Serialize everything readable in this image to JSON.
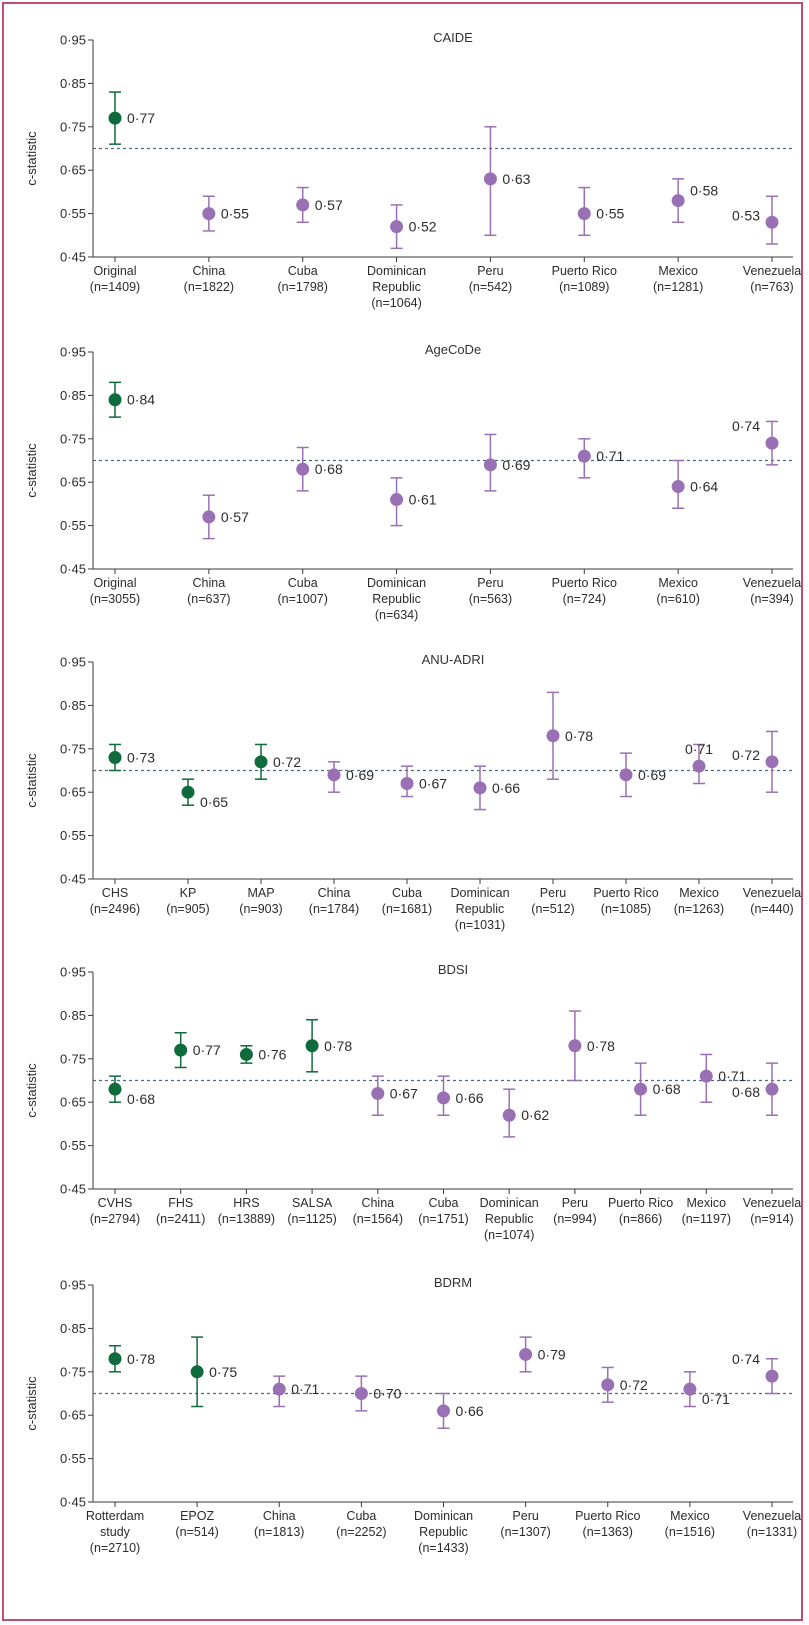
{
  "colors": {
    "original": "#0f6b3b",
    "external": "#9a70b4",
    "reference_line": "#4a6a80",
    "frame": "#c24b78",
    "axis": "#3a3a3a"
  },
  "chart_data": [
    {
      "type": "scatter",
      "title": "CAIDE",
      "ylabel": "c-statistic",
      "ylim": [
        0.45,
        0.95
      ],
      "yticks": [
        "0·95",
        "0·85",
        "0·75",
        "0·65",
        "0·55",
        "0·45"
      ],
      "reference_line": 0.7,
      "points": [
        {
          "category": "Original",
          "sublabels": [
            "(n=1409)"
          ],
          "value": 0.77,
          "label": "0·77",
          "lower": 0.71,
          "upper": 0.83,
          "group": "original"
        },
        {
          "category": "China",
          "sublabels": [
            "(n=1822)"
          ],
          "value": 0.55,
          "label": "0·55",
          "lower": 0.51,
          "upper": 0.59,
          "group": "external"
        },
        {
          "category": "Cuba",
          "sublabels": [
            "(n=1798)"
          ],
          "value": 0.57,
          "label": "0·57",
          "lower": 0.53,
          "upper": 0.61,
          "group": "external"
        },
        {
          "category": "Dominican",
          "sublabels": [
            "Republic",
            "(n=1064)"
          ],
          "value": 0.52,
          "label": "0·52",
          "lower": 0.47,
          "upper": 0.57,
          "group": "external"
        },
        {
          "category": "Peru",
          "sublabels": [
            "(n=542)"
          ],
          "value": 0.63,
          "label": "0·63",
          "lower": 0.5,
          "upper": 0.75,
          "group": "external"
        },
        {
          "category": "Puerto Rico",
          "sublabels": [
            "(n=1089)"
          ],
          "value": 0.55,
          "label": "0·55",
          "lower": 0.5,
          "upper": 0.61,
          "group": "external"
        },
        {
          "category": "Mexico",
          "sublabels": [
            "(n=1281)"
          ],
          "value": 0.58,
          "label": "0·58",
          "lower": 0.53,
          "upper": 0.63,
          "group": "external"
        },
        {
          "category": "Venezuela",
          "sublabels": [
            "(n=763)"
          ],
          "value": 0.53,
          "label": "0·53",
          "lower": 0.48,
          "upper": 0.59,
          "group": "external"
        }
      ]
    },
    {
      "type": "scatter",
      "title": "AgeCoDe",
      "ylabel": "c-statistic",
      "ylim": [
        0.45,
        0.95
      ],
      "yticks": [
        "0·95",
        "0·85",
        "0·75",
        "0·65",
        "0·55",
        "0·45"
      ],
      "reference_line": 0.7,
      "points": [
        {
          "category": "Original",
          "sublabels": [
            "(n=3055)"
          ],
          "value": 0.84,
          "label": "0·84",
          "lower": 0.8,
          "upper": 0.88,
          "group": "original"
        },
        {
          "category": "China",
          "sublabels": [
            "(n=637)"
          ],
          "value": 0.57,
          "label": "0·57",
          "lower": 0.52,
          "upper": 0.62,
          "group": "external"
        },
        {
          "category": "Cuba",
          "sublabels": [
            "(n=1007)"
          ],
          "value": 0.68,
          "label": "0·68",
          "lower": 0.63,
          "upper": 0.73,
          "group": "external"
        },
        {
          "category": "Dominican",
          "sublabels": [
            "Republic",
            "(n=634)"
          ],
          "value": 0.61,
          "label": "0·61",
          "lower": 0.55,
          "upper": 0.66,
          "group": "external"
        },
        {
          "category": "Peru",
          "sublabels": [
            "(n=563)"
          ],
          "value": 0.69,
          "label": "0·69",
          "lower": 0.63,
          "upper": 0.76,
          "group": "external"
        },
        {
          "category": "Puerto Rico",
          "sublabels": [
            "(n=724)"
          ],
          "value": 0.71,
          "label": "0·71",
          "lower": 0.66,
          "upper": 0.75,
          "group": "external"
        },
        {
          "category": "Mexico",
          "sublabels": [
            "(n=610)"
          ],
          "value": 0.64,
          "label": "0·64",
          "lower": 0.59,
          "upper": 0.7,
          "group": "external"
        },
        {
          "category": "Venezuela",
          "sublabels": [
            "(n=394)"
          ],
          "value": 0.74,
          "label": "0·74",
          "lower": 0.69,
          "upper": 0.79,
          "group": "external"
        }
      ]
    },
    {
      "type": "scatter",
      "title": "ANU-ADRI",
      "ylabel": "c-statistic",
      "ylim": [
        0.45,
        0.95
      ],
      "yticks": [
        "0·95",
        "0·85",
        "0·75",
        "0·65",
        "0·55",
        "0·45"
      ],
      "reference_line": 0.7,
      "points": [
        {
          "category": "CHS",
          "sublabels": [
            "(n=2496)"
          ],
          "value": 0.73,
          "label": "0·73",
          "lower": 0.7,
          "upper": 0.76,
          "group": "original"
        },
        {
          "category": "KP",
          "sublabels": [
            "(n=905)"
          ],
          "value": 0.65,
          "label": "0·65",
          "lower": 0.62,
          "upper": 0.68,
          "group": "original"
        },
        {
          "category": "MAP",
          "sublabels": [
            "(n=903)"
          ],
          "value": 0.72,
          "label": "0·72",
          "lower": 0.68,
          "upper": 0.76,
          "group": "original"
        },
        {
          "category": "China",
          "sublabels": [
            "(n=1784)"
          ],
          "value": 0.69,
          "label": "0·69",
          "lower": 0.65,
          "upper": 0.72,
          "group": "external"
        },
        {
          "category": "Cuba",
          "sublabels": [
            "(n=1681)"
          ],
          "value": 0.67,
          "label": "0·67",
          "lower": 0.64,
          "upper": 0.71,
          "group": "external"
        },
        {
          "category": "Dominican",
          "sublabels": [
            "Republic",
            "(n=1031)"
          ],
          "value": 0.66,
          "label": "0·66",
          "lower": 0.61,
          "upper": 0.71,
          "group": "external"
        },
        {
          "category": "Peru",
          "sublabels": [
            "(n=512)"
          ],
          "value": 0.78,
          "label": "0·78",
          "lower": 0.68,
          "upper": 0.88,
          "group": "external"
        },
        {
          "category": "Puerto Rico",
          "sublabels": [
            "(n=1085)"
          ],
          "value": 0.69,
          "label": "0·69",
          "lower": 0.64,
          "upper": 0.74,
          "group": "external"
        },
        {
          "category": "Mexico",
          "sublabels": [
            "(n=1263)"
          ],
          "value": 0.71,
          "label": "0·71",
          "lower": 0.67,
          "upper": 0.76,
          "group": "external"
        },
        {
          "category": "Venezuela",
          "sublabels": [
            "(n=440)"
          ],
          "value": 0.72,
          "label": "0·72",
          "lower": 0.65,
          "upper": 0.79,
          "group": "external"
        }
      ]
    },
    {
      "type": "scatter",
      "title": "BDSI",
      "ylabel": "c-statistic",
      "ylim": [
        0.45,
        0.95
      ],
      "yticks": [
        "0·95",
        "0·85",
        "0·75",
        "0·65",
        "0·55",
        "0·45"
      ],
      "reference_line": 0.7,
      "points": [
        {
          "category": "CVHS",
          "sublabels": [
            "(n=2794)"
          ],
          "value": 0.68,
          "label": "0·68",
          "lower": 0.65,
          "upper": 0.71,
          "group": "original"
        },
        {
          "category": "FHS",
          "sublabels": [
            "(n=2411)"
          ],
          "value": 0.77,
          "label": "0·77",
          "lower": 0.73,
          "upper": 0.81,
          "group": "original"
        },
        {
          "category": "HRS",
          "sublabels": [
            "(n=13889)"
          ],
          "value": 0.76,
          "label": "0·76",
          "lower": 0.74,
          "upper": 0.78,
          "group": "original"
        },
        {
          "category": "SALSA",
          "sublabels": [
            "(n=1125)"
          ],
          "value": 0.78,
          "label": "0·78",
          "lower": 0.72,
          "upper": 0.84,
          "group": "original"
        },
        {
          "category": "China",
          "sublabels": [
            "(n=1564)"
          ],
          "value": 0.67,
          "label": "0·67",
          "lower": 0.62,
          "upper": 0.71,
          "group": "external"
        },
        {
          "category": "Cuba",
          "sublabels": [
            "(n=1751)"
          ],
          "value": 0.66,
          "label": "0·66",
          "lower": 0.62,
          "upper": 0.71,
          "group": "external"
        },
        {
          "category": "Dominican",
          "sublabels": [
            "Republic",
            "(n=1074)"
          ],
          "value": 0.62,
          "label": "0·62",
          "lower": 0.57,
          "upper": 0.68,
          "group": "external"
        },
        {
          "category": "Peru",
          "sublabels": [
            "(n=994)"
          ],
          "value": 0.78,
          "label": "0·78",
          "lower": 0.7,
          "upper": 0.86,
          "group": "external"
        },
        {
          "category": "Puerto Rico",
          "sublabels": [
            "(n=866)"
          ],
          "value": 0.68,
          "label": "0·68",
          "lower": 0.62,
          "upper": 0.74,
          "group": "external"
        },
        {
          "category": "Mexico",
          "sublabels": [
            "(n=1197)"
          ],
          "value": 0.71,
          "label": "0·71",
          "lower": 0.65,
          "upper": 0.76,
          "group": "external"
        },
        {
          "category": "Venezuela",
          "sublabels": [
            "(n=914)"
          ],
          "value": 0.68,
          "label": "0·68",
          "lower": 0.62,
          "upper": 0.74,
          "group": "external"
        }
      ]
    },
    {
      "type": "scatter",
      "title": "BDRM",
      "ylabel": "c-statistic",
      "ylim": [
        0.45,
        0.95
      ],
      "yticks": [
        "0·95",
        "0·85",
        "0·75",
        "0·65",
        "0·55",
        "0·45"
      ],
      "reference_line": 0.7,
      "points": [
        {
          "category": "Rotterdam",
          "sublabels": [
            "study",
            "(n=2710)"
          ],
          "value": 0.78,
          "label": "0·78",
          "lower": 0.75,
          "upper": 0.81,
          "group": "original"
        },
        {
          "category": "EPOZ",
          "sublabels": [
            "(n=514)"
          ],
          "value": 0.75,
          "label": "0·75",
          "lower": 0.67,
          "upper": 0.83,
          "group": "original"
        },
        {
          "category": "China",
          "sublabels": [
            "(n=1813)"
          ],
          "value": 0.71,
          "label": "0·71",
          "lower": 0.67,
          "upper": 0.74,
          "group": "external"
        },
        {
          "category": "Cuba",
          "sublabels": [
            "(n=2252)"
          ],
          "value": 0.7,
          "label": "0·70",
          "lower": 0.66,
          "upper": 0.74,
          "group": "external"
        },
        {
          "category": "Dominican",
          "sublabels": [
            "Republic",
            "(n=1433)"
          ],
          "value": 0.66,
          "label": "0·66",
          "lower": 0.62,
          "upper": 0.7,
          "group": "external"
        },
        {
          "category": "Peru",
          "sublabels": [
            "(n=1307)"
          ],
          "value": 0.79,
          "label": "0·79",
          "lower": 0.75,
          "upper": 0.83,
          "group": "external"
        },
        {
          "category": "Puerto Rico",
          "sublabels": [
            "(n=1363)"
          ],
          "value": 0.72,
          "label": "0·72",
          "lower": 0.68,
          "upper": 0.76,
          "group": "external"
        },
        {
          "category": "Mexico",
          "sublabels": [
            "(n=1516)"
          ],
          "value": 0.71,
          "label": "0·71",
          "lower": 0.67,
          "upper": 0.75,
          "group": "external"
        },
        {
          "category": "Venezuela",
          "sublabels": [
            "(n=1331)"
          ],
          "value": 0.74,
          "label": "0·74",
          "lower": 0.7,
          "upper": 0.78,
          "group": "external"
        }
      ]
    }
  ]
}
